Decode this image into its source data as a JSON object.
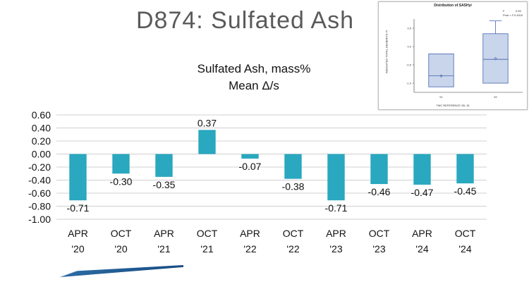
{
  "slide": {
    "title": "D874:  Sulfated Ash"
  },
  "chart_data": {
    "type": "bar",
    "title": "Sulfated Ash, mass%",
    "subtitle": "Mean Δ/s",
    "categories": [
      [
        "APR",
        "'20"
      ],
      [
        "OCT",
        "'20"
      ],
      [
        "APR",
        "'21"
      ],
      [
        "OCT",
        "'21"
      ],
      [
        "APR",
        "'22"
      ],
      [
        "OCT",
        "'22"
      ],
      [
        "APR",
        "'23"
      ],
      [
        "OCT",
        "'23"
      ],
      [
        "APR",
        "'24"
      ],
      [
        "OCT",
        "'24"
      ]
    ],
    "values": [
      -0.71,
      -0.3,
      -0.35,
      0.37,
      -0.07,
      -0.38,
      -0.71,
      -0.46,
      -0.47,
      -0.45
    ],
    "value_labels": [
      "-0.71",
      "-0.30",
      "-0.35",
      "0.37",
      "-0.07",
      "-0.38",
      "-0.71",
      "-0.46",
      "-0.47",
      "-0.45"
    ],
    "ylim": [
      -1.0,
      0.6
    ],
    "yticks": [
      "0.60",
      "0.40",
      "0.20",
      "0.00",
      "-0.20",
      "-0.40",
      "-0.60",
      "-0.80",
      "-1.00"
    ],
    "ytick_values": [
      0.6,
      0.4,
      0.2,
      0.0,
      -0.2,
      -0.4,
      -0.6,
      -0.8,
      -1.0
    ],
    "bar_color": "#2aa8bf",
    "grid": true
  },
  "inset": {
    "title": "Distribution of SASHyi",
    "stat_f_label": "F",
    "stat_f_value": "0.53",
    "stat_p_label": "Prob > F",
    "stat_p_value": "0.4910",
    "ylabel": "WEIGHTED TOTAL DEMERITS YI",
    "xlabel": "TMC REFERENCE OIL ID",
    "yticks": [
      "0.5",
      "0.0",
      "-0.5",
      "-1.0"
    ],
    "ytick_values": [
      0.5,
      0.0,
      -0.5,
      -1.0
    ],
    "ylim": [
      -1.25,
      0.75
    ],
    "categories": [
      "91",
      "92"
    ],
    "boxes": [
      {
        "min": -1.1,
        "q1": -1.1,
        "median": -0.8,
        "q3": -0.2,
        "max": -0.2,
        "mean": -0.8
      },
      {
        "min": -1.0,
        "q1": -1.0,
        "median": -0.35,
        "q3": 0.35,
        "max": 0.7,
        "mean": -0.33
      }
    ],
    "box_color": "#c9d5ea",
    "line_color": "#4464b0"
  }
}
